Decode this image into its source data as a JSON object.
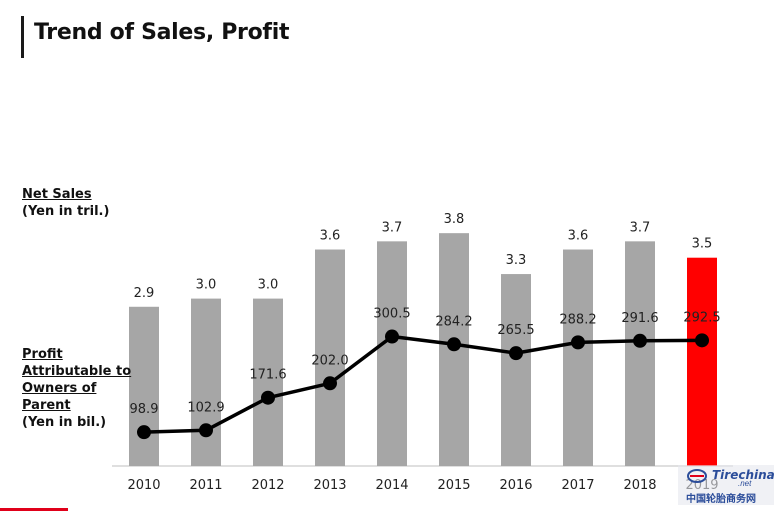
{
  "header": {
    "title": "Trend of Sales, Profit"
  },
  "labels": {
    "net_sales_line1": "Net Sales",
    "net_sales_line2": "(Yen in tril.)",
    "profit_lines": [
      "Profit",
      "Attributable to",
      "Owners of",
      "Parent",
      "(Yen in bil.)"
    ]
  },
  "watermark": {
    "main": "Tirechina",
    "sub": ".net",
    "cn": "中国轮胎商务网"
  },
  "chart_data": {
    "type": "bar",
    "categories": [
      "2010",
      "2011",
      "2012",
      "2013",
      "2014",
      "2015",
      "2016",
      "2017",
      "2018",
      "2019"
    ],
    "series": [
      {
        "values": [
          2.9,
          3.0,
          3.0,
          3.6,
          3.7,
          3.8,
          3.3,
          3.6,
          3.7,
          3.5
        ],
        "labels": [
          "2.9",
          "3.0",
          "3.0",
          "3.6",
          "3.7",
          "3.8",
          "3.3",
          "3.6",
          "3.7",
          "3.5"
        ],
        "type": "bar"
      },
      {
        "values": [
          98.9,
          102.9,
          171.6,
          202.0,
          300.5,
          284.2,
          265.5,
          288.2,
          291.6,
          292.5
        ],
        "labels": [
          "98.9",
          "102.9",
          "171.6",
          "202.0",
          "300.5",
          "284.2",
          "265.5",
          "288.2",
          "291.6",
          "292.5"
        ],
        "type": "line"
      }
    ],
    "bar_colors": {
      "default": "#a6a6a6",
      "highlight": "#ff0000"
    },
    "highlight_index": 9,
    "line_color": "#000000",
    "legend": "none",
    "grid": false
  }
}
